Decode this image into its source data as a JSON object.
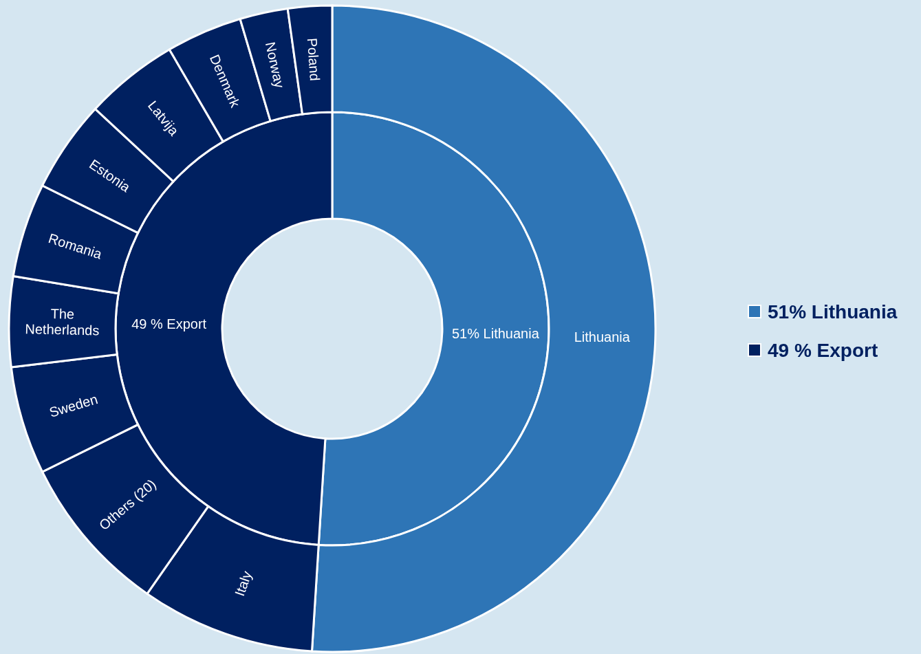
{
  "chart_data": [
    {
      "type": "donut",
      "categories": [
        "51% Lithuania",
        "49 % Export"
      ],
      "values": [
        51,
        49
      ],
      "colors": [
        "#2e75b6",
        "#002060"
      ],
      "legend": "right"
    },
    {
      "type": "donut",
      "categories": [
        "Lithuania",
        "Italy",
        "Others (20)",
        "Sweden",
        "The Netherlands",
        "Romania",
        "Estonia",
        "Latvija",
        "Denmark",
        "Norway",
        "Poland"
      ],
      "values": [
        51,
        8.7,
        8.0,
        5.4,
        4.5,
        4.7,
        4.6,
        4.7,
        3.8,
        2.4,
        2.2
      ],
      "colors": [
        "#2e75b6",
        "#002060",
        "#002060",
        "#002060",
        "#002060",
        "#002060",
        "#002060",
        "#002060",
        "#002060",
        "#002060",
        "#002060"
      ]
    }
  ]
}
